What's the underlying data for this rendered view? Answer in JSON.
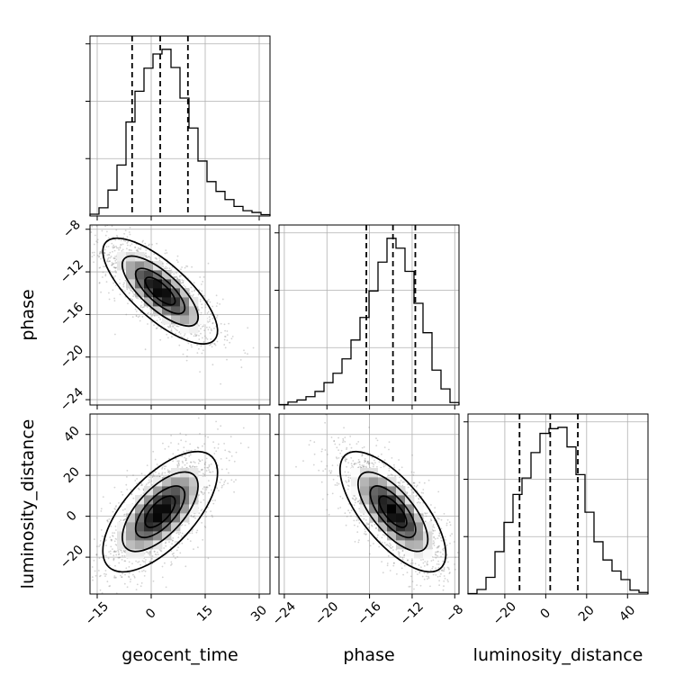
{
  "chart_data": {
    "type": "corner",
    "parameters": [
      {
        "name": "geocent_time",
        "label": "geocent_time",
        "range": [
          -17,
          33
        ],
        "ticks": [
          -15,
          0,
          15,
          30
        ],
        "tick_labels": [
          "−15",
          "0",
          "15",
          "30"
        ],
        "quantiles": [
          -5.3,
          2.5,
          10.2
        ]
      },
      {
        "name": "phase",
        "label": "phase",
        "range": [
          -24.5,
          -7.6
        ],
        "ticks": [
          -24,
          -20,
          -16,
          -12,
          -8
        ],
        "tick_labels": [
          "−24",
          "−20",
          "−16",
          "−12",
          "−8"
        ],
        "quantiles": [
          -16.3,
          -13.8,
          -11.7
        ]
      },
      {
        "name": "luminosity_distance",
        "label": "luminosity_distance",
        "range": [
          -38,
          50
        ],
        "ticks": [
          -20,
          0,
          20,
          40
        ],
        "tick_labels": [
          "−20",
          "0",
          "20",
          "40"
        ],
        "quantiles": [
          -12.8,
          2.2,
          15.7
        ]
      }
    ],
    "histograms": [
      {
        "parameter": "geocent_time",
        "bin_edges": [
          -17,
          -14.5,
          -12,
          -9.5,
          -7,
          -4.5,
          -2,
          0.5,
          3,
          5.5,
          8,
          10.5,
          13,
          15.5,
          18,
          20.5,
          23,
          25.5,
          28,
          30.5,
          33
        ],
        "counts": [
          0.8,
          3.7,
          11.7,
          23.0,
          42.4,
          56.3,
          66.7,
          73.1,
          75.2,
          67.0,
          53.2,
          39.7,
          24.8,
          15.5,
          11.1,
          7.4,
          4.3,
          2.4,
          1.6,
          0.6
        ]
      },
      {
        "parameter": "phase",
        "bin_edges": [
          -24.5,
          -23.655,
          -22.81,
          -21.965,
          -21.12,
          -20.275,
          -19.43,
          -18.585,
          -17.74,
          -16.895,
          -16.05,
          -15.205,
          -14.36,
          -13.515,
          -12.67,
          -11.825,
          -10.98,
          -10.135,
          -9.29,
          -8.445,
          -7.6
        ],
        "counts": [
          0.2,
          1.4,
          2.4,
          4.0,
          6.5,
          10.7,
          15.2,
          22.1,
          31.1,
          41.9,
          54.6,
          68.4,
          79.8,
          75.1,
          64.0,
          48.7,
          34.6,
          16.7,
          7.7,
          1.2
        ]
      },
      {
        "parameter": "luminosity_distance",
        "bin_edges": [
          -38,
          -33.6,
          -29.2,
          -24.8,
          -20.4,
          -16,
          -11.6,
          -7.2,
          -2.8,
          1.6,
          6,
          10.4,
          14.8,
          19.2,
          23.6,
          28,
          32.4,
          36.8,
          41.2,
          45.6,
          50
        ],
        "counts": [
          0.2,
          2.0,
          7.4,
          18.8,
          31.8,
          44.2,
          51.5,
          62.8,
          71.3,
          73.4,
          74.0,
          65.3,
          53.0,
          36.3,
          23.2,
          15.1,
          10.2,
          6.4,
          1.7,
          0.7
        ]
      }
    ],
    "pairs": [
      {
        "x": "geocent_time",
        "y": "phase",
        "correlation": -0.75,
        "contour_levels": [
          "0.5 sigma",
          "1 sigma",
          "1.5 sigma",
          "2 sigma"
        ]
      },
      {
        "x": "geocent_time",
        "y": "luminosity_distance",
        "correlation": 0.65,
        "contour_levels": [
          "0.5 sigma",
          "1 sigma",
          "1.5 sigma",
          "2 sigma"
        ]
      },
      {
        "x": "phase",
        "y": "luminosity_distance",
        "correlation": -0.7,
        "contour_levels": [
          "0.5 sigma",
          "1 sigma",
          "1.5 sigma",
          "2 sigma"
        ]
      }
    ],
    "grid": true,
    "colors": {
      "line": "#000000",
      "points": "#808080",
      "grid": "#b0b0b0",
      "density": "#000000"
    }
  }
}
